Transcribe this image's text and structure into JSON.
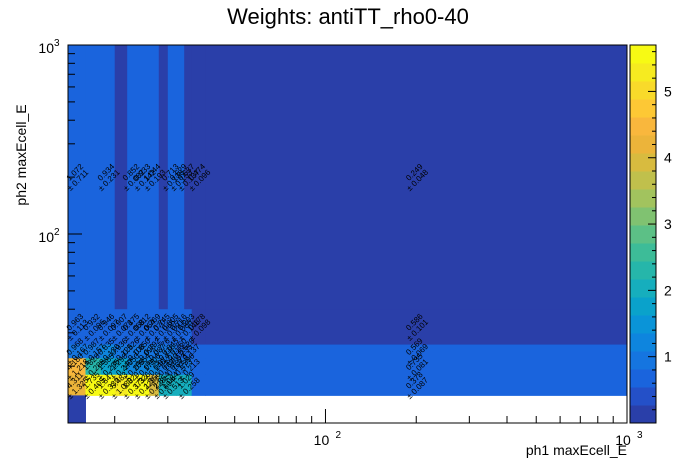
{
  "chart_data": {
    "type": "heatmap",
    "title": "Weights: antiTT_rho0-40",
    "xlabel": "ph1 maxEcell_E",
    "ylabel": "ph2 maxEcell_E",
    "x_scale": "log",
    "y_scale": "log",
    "xlim": [
      14,
      1000
    ],
    "ylim": [
      10,
      1000
    ],
    "x_ticks": [
      {
        "value": 100,
        "base": "10",
        "exp": "2"
      },
      {
        "value": 1000,
        "base": "10",
        "exp": "3"
      }
    ],
    "y_ticks": [
      {
        "value": 100,
        "base": "10",
        "exp": "2"
      },
      {
        "value": 1000,
        "base": "10",
        "exp": "3"
      }
    ],
    "x_edges": [
      14,
      16,
      18,
      20,
      22,
      24,
      26,
      28,
      30,
      32,
      34,
      36,
      40,
      1000
    ],
    "y_edges": [
      10,
      14,
      18,
      22,
      26,
      40,
      1000
    ],
    "colorbar": {
      "min": 0,
      "max": 5.7,
      "tick_values": [
        1,
        2,
        3,
        4,
        5
      ],
      "tick_labels": [
        "1",
        "2",
        "3",
        "4",
        "5"
      ],
      "palette": [
        "#2a3fa9",
        "#2450c8",
        "#1a64dd",
        "#1575e0",
        "#0e85de",
        "#0a94d8",
        "#0aa2cb",
        "#16aebd",
        "#26b6aa",
        "#3dbc98",
        "#5cc086",
        "#80c271",
        "#a2c35e",
        "#c0c04c",
        "#d8bb3f",
        "#ecb43a",
        "#f9b73d",
        "#fdc835",
        "#f9da2a",
        "#f6eb20",
        "#f7fa14"
      ]
    },
    "cells": [
      {
        "ix": 0,
        "iy": 5,
        "value": 0.6,
        "label": "1.072",
        "err": "± 0.711"
      },
      {
        "ix": 1,
        "iy": 5,
        "value": 0.6,
        "label": "",
        "err": ""
      },
      {
        "ix": 2,
        "iy": 5,
        "value": 0.6,
        "label": "0.934",
        "err": "± 0.231"
      },
      {
        "ix": 3,
        "iy": 5,
        "value": 0.2,
        "label": "",
        "err": ""
      },
      {
        "ix": 4,
        "iy": 5,
        "value": 0.6,
        "label": "0.852",
        "err": "± 0.082"
      },
      {
        "ix": 5,
        "iy": 5,
        "value": 0.6,
        "label": "0.933",
        "err": "± 0.142"
      },
      {
        "ix": 6,
        "iy": 5,
        "value": 0.6,
        "label": "1.044",
        "err": "± 0.193"
      },
      {
        "ix": 7,
        "iy": 5,
        "value": 0.2,
        "label": "",
        "err": ""
      },
      {
        "ix": 8,
        "iy": 5,
        "value": 0.6,
        "label": "0.713",
        "err": "± 0.138"
      },
      {
        "ix": 9,
        "iy": 5,
        "value": 0.6,
        "label": "0.629",
        "err": "± 0.153"
      },
      {
        "ix": 10,
        "iy": 5,
        "value": 0.2,
        "label": "0.637",
        "err": "± 0.137"
      },
      {
        "ix": 11,
        "iy": 5,
        "value": 0.2,
        "label": "0.474",
        "err": "± 0.096"
      },
      {
        "ix": 12,
        "iy": 5,
        "value": 0.2,
        "label": "0.249",
        "err": "± 0.048"
      },
      {
        "ix": 0,
        "iy": 4,
        "value": 0.6,
        "label": "0.963",
        "err": "± 0.113"
      },
      {
        "ix": 1,
        "iy": 4,
        "value": 0.6,
        "label": "0.932",
        "err": "± 0.096"
      },
      {
        "ix": 2,
        "iy": 4,
        "value": 0.6,
        "label": "0.946",
        "err": "± 0.097"
      },
      {
        "ix": 3,
        "iy": 4,
        "value": 0.6,
        "label": "0.907",
        "err": "± 0.071"
      },
      {
        "ix": 4,
        "iy": 4,
        "value": 0.6,
        "label": "0.875",
        "err": "± 0.068"
      },
      {
        "ix": 5,
        "iy": 4,
        "value": 0.6,
        "label": "0.812",
        "err": "± 0.064"
      },
      {
        "ix": 6,
        "iy": 4,
        "value": 0.6,
        "label": "0.769",
        "err": "± 0.070"
      },
      {
        "ix": 7,
        "iy": 4,
        "value": 0.6,
        "label": "0.745",
        "err": "± 0.066"
      },
      {
        "ix": 8,
        "iy": 4,
        "value": 0.6,
        "label": "0.805",
        "err": "± 0.091"
      },
      {
        "ix": 9,
        "iy": 4,
        "value": 0.6,
        "label": "0.716",
        "err": "± 0.088"
      },
      {
        "ix": 10,
        "iy": 4,
        "value": 0.6,
        "label": "0.203",
        "err": "± 0.148"
      },
      {
        "ix": 11,
        "iy": 4,
        "value": 0.2,
        "label": "0.178",
        "err": "± 0.098"
      },
      {
        "ix": 12,
        "iy": 4,
        "value": 0.2,
        "label": "0.586",
        "err": "± 0.101"
      },
      {
        "ix": 0,
        "iy": 3,
        "value": 1.0,
        "label": "0.968",
        "err": "± 0.167"
      },
      {
        "ix": 1,
        "iy": 3,
        "value": 1.0,
        "label": "0.987",
        "err": "± 0.157"
      },
      {
        "ix": 2,
        "iy": 3,
        "value": 1.3,
        "label": "0.835",
        "err": "± 0.130"
      },
      {
        "ix": 3,
        "iy": 3,
        "value": 1.0,
        "label": "0.936",
        "err": "± 0.125"
      },
      {
        "ix": 4,
        "iy": 3,
        "value": 1.0,
        "label": "0.826",
        "err": "± 0.108"
      },
      {
        "ix": 5,
        "iy": 3,
        "value": 1.0,
        "label": "0.850",
        "err": "± 0.098"
      },
      {
        "ix": 6,
        "iy": 3,
        "value": 1.0,
        "label": "0.792",
        "err": "± 0.087"
      },
      {
        "ix": 7,
        "iy": 3,
        "value": 1.0,
        "label": "0.776",
        "err": "± 0.116"
      },
      {
        "ix": 8,
        "iy": 3,
        "value": 1.0,
        "label": "0.845",
        "err": "± 0.116"
      },
      {
        "ix": 9,
        "iy": 3,
        "value": 0.6,
        "label": "0.760",
        "err": "± 0.235"
      },
      {
        "ix": 10,
        "iy": 3,
        "value": 0.6,
        "label": "0.628",
        "err": "± 0.137"
      },
      {
        "ix": 11,
        "iy": 3,
        "value": 0.6,
        "label": "",
        "err": ""
      },
      {
        "ix": 12,
        "iy": 3,
        "value": 0.6,
        "label": "0.569",
        "err": "± 0.069"
      },
      {
        "ix": 0,
        "iy": 2,
        "value": 4.5,
        "label": "4.180",
        "err": "± 1.218"
      },
      {
        "ix": 1,
        "iy": 2,
        "value": 2.4,
        "label": "1.828",
        "err": "± 0.288"
      },
      {
        "ix": 2,
        "iy": 2,
        "value": 1.8,
        "label": "1.385",
        "err": "± 0.235"
      },
      {
        "ix": 3,
        "iy": 2,
        "value": 1.7,
        "label": "1.298",
        "err": "± 0.249"
      },
      {
        "ix": 4,
        "iy": 2,
        "value": 1.3,
        "label": "1.050",
        "err": "± 0.205"
      },
      {
        "ix": 5,
        "iy": 2,
        "value": 1.1,
        "label": "0.954",
        "err": "± 0.175"
      },
      {
        "ix": 6,
        "iy": 2,
        "value": 1.1,
        "label": "0.906",
        "err": "± 0.146"
      },
      {
        "ix": 7,
        "iy": 2,
        "value": 1.0,
        "label": "0.914",
        "err": "± 0.167"
      },
      {
        "ix": 8,
        "iy": 2,
        "value": 1.0,
        "label": "0.840",
        "err": "± 0.167"
      },
      {
        "ix": 9,
        "iy": 2,
        "value": 1.0,
        "label": "0.373",
        "err": "± 0.373"
      },
      {
        "ix": 10,
        "iy": 2,
        "value": 1.0,
        "label": "1.396",
        "err": "± 0.213"
      },
      {
        "ix": 11,
        "iy": 2,
        "value": 0.6,
        "label": "",
        "err": ""
      },
      {
        "ix": 12,
        "iy": 2,
        "value": 0.6,
        "label": "0.735",
        "err": "± 0.081"
      },
      {
        "ix": 0,
        "iy": 1,
        "value": 4.3,
        "label": "4.311",
        "err": "± 1.325"
      },
      {
        "ix": 1,
        "iy": 1,
        "value": 5.5,
        "label": "1.735",
        "err": "± 0.405"
      },
      {
        "ix": 2,
        "iy": 1,
        "value": 5.7,
        "label": "1.847",
        "err": "± 0.339"
      },
      {
        "ix": 3,
        "iy": 1,
        "value": 5.2,
        "label": "5.483",
        "err": "± 1.089"
      },
      {
        "ix": 4,
        "iy": 1,
        "value": 5.5,
        "label": "1.829",
        "err": "± 0.373"
      },
      {
        "ix": 5,
        "iy": 1,
        "value": 5.6,
        "label": "1.326",
        "err": "± 0.228"
      },
      {
        "ix": 6,
        "iy": 1,
        "value": 3.9,
        "label": "1.356",
        "err": "± 0.228"
      },
      {
        "ix": 7,
        "iy": 1,
        "value": 2.0,
        "label": "2.854",
        "err": "± 0.694"
      },
      {
        "ix": 8,
        "iy": 1,
        "value": 1.9,
        "label": "1.084",
        "err": "± 0.513"
      },
      {
        "ix": 9,
        "iy": 1,
        "value": 1.9,
        "label": "",
        "err": ""
      },
      {
        "ix": 10,
        "iy": 1,
        "value": 1.9,
        "label": "1.029",
        "err": "± 0.258"
      },
      {
        "ix": 11,
        "iy": 1,
        "value": 0.6,
        "label": "",
        "err": ""
      },
      {
        "ix": 12,
        "iy": 1,
        "value": 0.6,
        "label": "0.378",
        "err": "± 0.087"
      },
      {
        "ix": 0,
        "iy": 0,
        "value": 0.2,
        "label": "",
        "err": ""
      }
    ]
  }
}
